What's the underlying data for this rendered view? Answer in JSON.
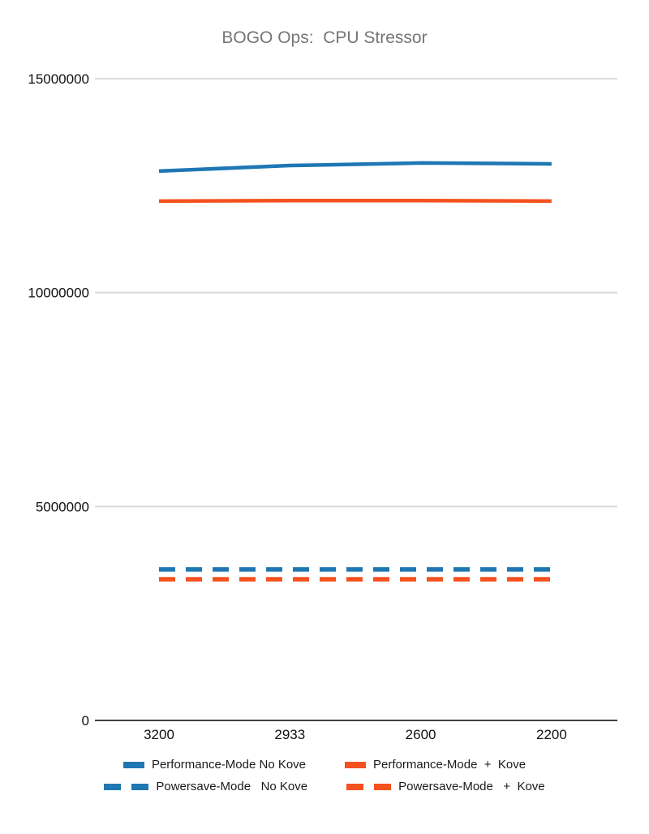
{
  "chart": {
    "title": "BOGO Ops:  CPU Stressor"
  },
  "chart_data": {
    "type": "line",
    "title": "BOGO Ops:  CPU Stressor",
    "xlabel": "",
    "ylabel": "",
    "categories": [
      "3200",
      "2933",
      "2600",
      "2200"
    ],
    "series": [
      {
        "name": "Performance-Mode No Kove",
        "color": "#1f77b4",
        "style": "solid",
        "values": [
          12840000,
          12970000,
          13030000,
          13010000
        ]
      },
      {
        "name": "Performance-Mode  +  Kove",
        "color": "#f4511e",
        "style": "solid",
        "values": [
          12140000,
          12150000,
          12150000,
          12140000
        ]
      },
      {
        "name": "Powersave-Mode   No Kove",
        "color": "#1f77b4",
        "style": "dashed",
        "values": [
          3530000,
          3530000,
          3530000,
          3530000
        ]
      },
      {
        "name": "Powersave-Mode   +  Kove",
        "color": "#f4511e",
        "style": "dashed",
        "values": [
          3300000,
          3300000,
          3300000,
          3300000
        ]
      }
    ],
    "ylim": [
      0,
      15000000
    ],
    "y_ticks": [
      0,
      5000000,
      10000000,
      15000000
    ],
    "y_tick_labels": [
      "0",
      "5000000",
      "10000000",
      "15000000"
    ],
    "x_tick_labels": [
      "3200",
      "2933",
      "2600",
      "2200"
    ],
    "grid": true,
    "legend_position": "bottom",
    "colors": {
      "title_text": "#757575",
      "tick_label": "#000000",
      "gridline": "#dadada",
      "axis_line": "#424242",
      "background": "#ffffff",
      "series_blue": "#1f77b4",
      "series_orange": "#f4511e"
    }
  }
}
